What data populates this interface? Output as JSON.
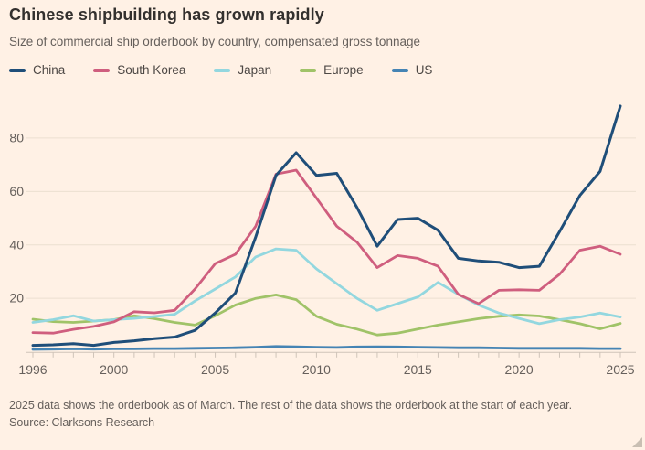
{
  "header": {
    "title": "Chinese shipbuilding has grown rapidly",
    "subtitle": "Size of commercial ship orderbook by country, compensated gross tonnage"
  },
  "legend": [
    {
      "label": "China",
      "color": "#1F4E79"
    },
    {
      "label": "South Korea",
      "color": "#CF5E7E"
    },
    {
      "label": "Japan",
      "color": "#93D7DF"
    },
    {
      "label": "Europe",
      "color": "#A0C368"
    },
    {
      "label": "US",
      "color": "#4584B4"
    }
  ],
  "footer": {
    "note": "2025 data shows the orderbook as of March. The rest of the data shows the orderbook at the start of each year.",
    "source": "Source: Clarksons Research"
  },
  "colors": {
    "background": "#FFF1E5",
    "title_text": "#33302E",
    "muted_text": "#66605C",
    "legend_text": "#4D4845",
    "gridline": "#ECDFD0",
    "tick": "#CFC4B9"
  },
  "chart_data": {
    "type": "line",
    "title": "Chinese shipbuilding has grown rapidly",
    "subtitle": "Size of commercial ship orderbook by country, compensated gross tonnage",
    "xlabel": "",
    "ylabel": "",
    "ylim": [
      0,
      95
    ],
    "yticks": [
      20,
      40,
      60,
      80
    ],
    "xtick_labels": [
      "1996",
      "2000",
      "2005",
      "2010",
      "2015",
      "2020",
      "2025"
    ],
    "grid": "horizontal",
    "legend_position": "top",
    "x": [
      1996,
      1997,
      1998,
      1999,
      2000,
      2001,
      2002,
      2003,
      2004,
      2005,
      2006,
      2007,
      2008,
      2009,
      2010,
      2011,
      2012,
      2013,
      2014,
      2015,
      2016,
      2017,
      2018,
      2019,
      2020,
      2021,
      2022,
      2023,
      2024,
      2025
    ],
    "series": [
      {
        "name": "China",
        "color": "#1F4E79",
        "values": [
          2.4,
          2.6,
          3.0,
          2.4,
          3.5,
          4.1,
          4.9,
          5.5,
          8,
          14.5,
          22,
          43,
          66,
          74.5,
          66,
          66.8,
          54,
          39.5,
          49.5,
          50,
          45.5,
          35,
          34,
          33.5,
          31.5,
          32,
          45,
          58.5,
          67.5,
          92
        ]
      },
      {
        "name": "South Korea",
        "color": "#CF5E7E",
        "values": [
          7.2,
          7.0,
          8.4,
          9.5,
          11.2,
          15,
          14.6,
          15.5,
          23.5,
          33,
          36.5,
          47,
          66.5,
          68,
          57.5,
          47,
          41,
          31.5,
          36,
          35,
          32,
          21.5,
          18,
          23,
          23.2,
          23,
          29,
          38,
          39.5,
          36.5
        ]
      },
      {
        "name": "Japan",
        "color": "#93D7DF",
        "values": [
          11,
          12,
          13.5,
          11.5,
          12,
          12.5,
          13.2,
          14,
          19,
          23.5,
          28,
          35.5,
          38.5,
          38,
          31,
          25.5,
          20,
          15.5,
          18,
          20.5,
          26,
          21.5,
          17.5,
          14.5,
          12.5,
          10.5,
          12,
          13,
          14.5,
          13
        ]
      },
      {
        "name": "Europe",
        "color": "#A0C368",
        "values": [
          12.2,
          11.3,
          11,
          11.5,
          12,
          13.5,
          12.4,
          11,
          10,
          13.5,
          17.5,
          20,
          21.3,
          19.5,
          13.3,
          10.3,
          8.5,
          6.3,
          7,
          8.5,
          10,
          11.2,
          12.4,
          13.3,
          13.8,
          13.4,
          12,
          10.5,
          8.6,
          10.6
        ]
      },
      {
        "name": "US",
        "color": "#4584B4",
        "values": [
          0.9,
          1.0,
          1.1,
          1.0,
          1.1,
          1.1,
          1.2,
          1.2,
          1.3,
          1.4,
          1.5,
          1.7,
          2.0,
          1.9,
          1.7,
          1.6,
          1.8,
          1.9,
          1.8,
          1.7,
          1.6,
          1.5,
          1.5,
          1.4,
          1.3,
          1.3,
          1.3,
          1.3,
          1.2,
          1.2
        ]
      }
    ]
  }
}
